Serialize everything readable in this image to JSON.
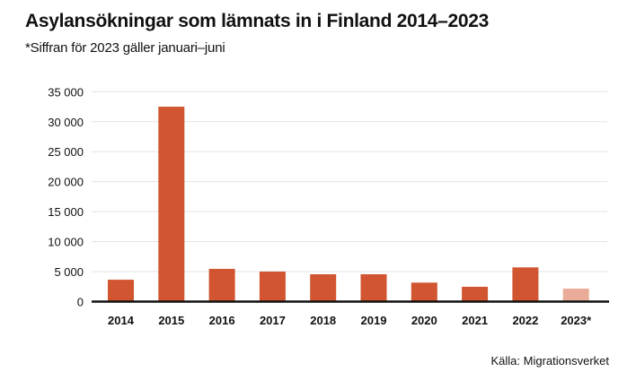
{
  "chart_data": {
    "type": "bar",
    "title": "Asylansökningar som lämnats in i Finland 2014–2023",
    "subtitle": "*Siffran för 2023 gäller januari–juni",
    "source": "Källa: Migrationsverket",
    "categories": [
      "2014",
      "2015",
      "2016",
      "2017",
      "2018",
      "2019",
      "2020",
      "2021",
      "2022",
      "2023*"
    ],
    "values": [
      3650,
      32500,
      5460,
      5010,
      4560,
      4560,
      3170,
      2470,
      5710,
      2170
    ],
    "ylim": [
      0,
      35000
    ],
    "yticks": [
      0,
      5000,
      10000,
      15000,
      20000,
      25000,
      30000,
      35000
    ],
    "ytick_labels": [
      "0",
      "5 000",
      "10 000",
      "15 000",
      "20 000",
      "25 000",
      "30 000",
      "35 000"
    ],
    "grid": true,
    "colors": {
      "bar": "#d15531",
      "bar_partial": "#eaac98",
      "grid": "#e3e3e3",
      "axis": "#111111"
    }
  }
}
